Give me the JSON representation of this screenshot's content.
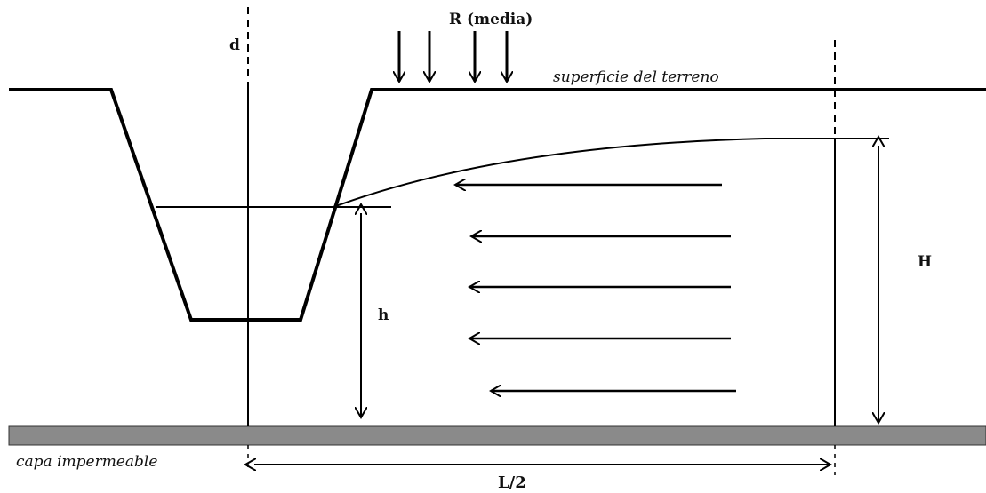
{
  "labels": {
    "recharge": "R (media)",
    "axis": "d",
    "surface": "superficie del terreno",
    "impermeable": "capa impermeable",
    "h": "h",
    "H": "H",
    "half_spacing": "L/2"
  },
  "colors": {
    "line": "#000000",
    "impermeable_layer": "#8a8a8a",
    "background": "#ffffff"
  }
}
